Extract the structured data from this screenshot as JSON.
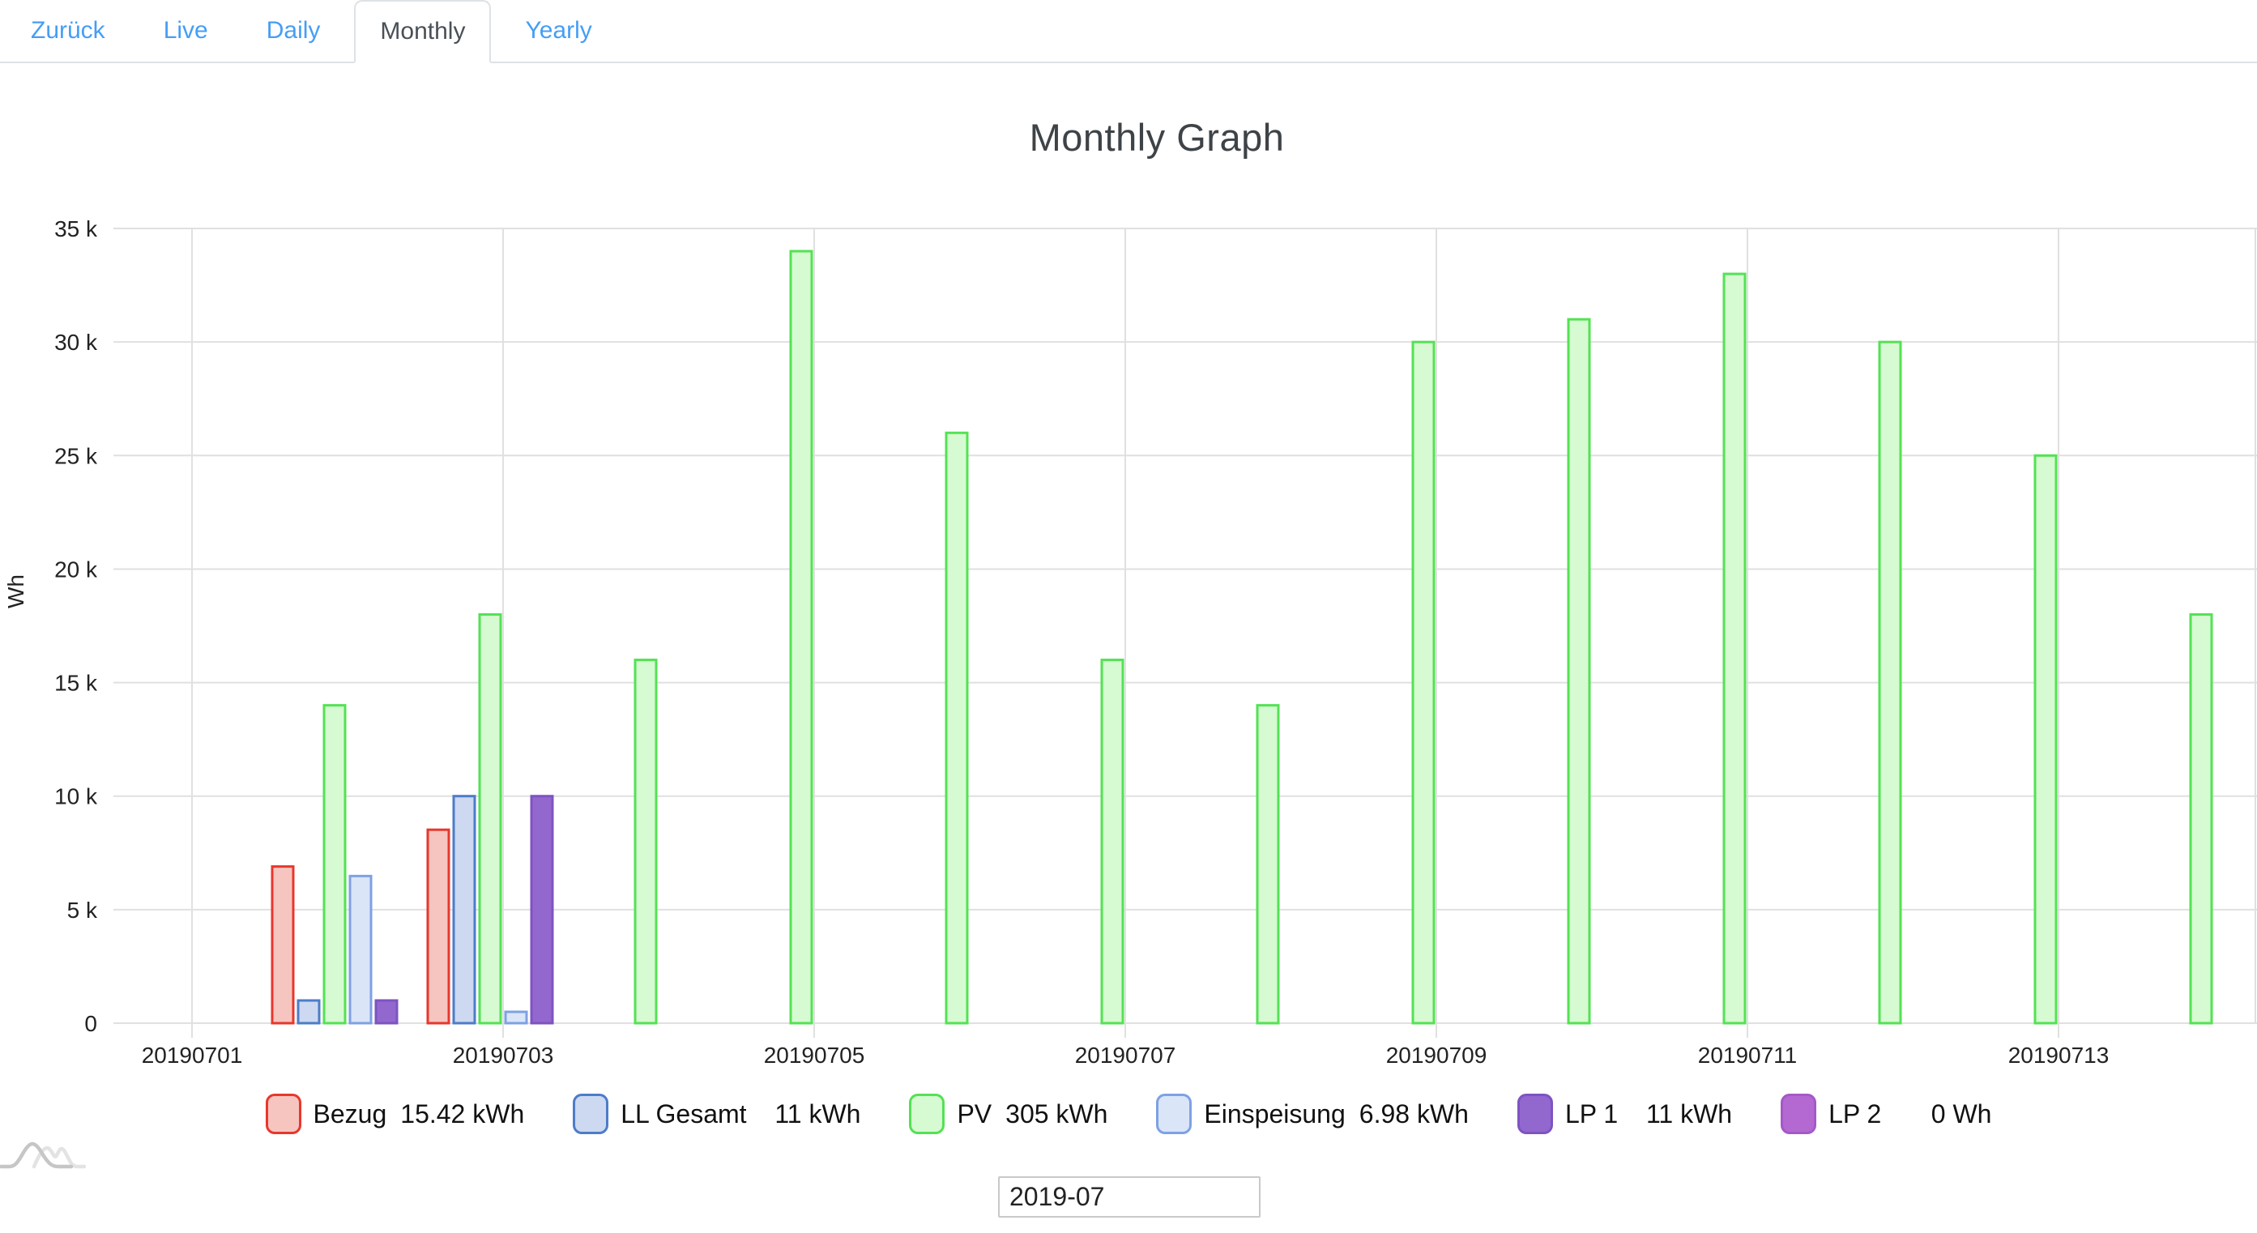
{
  "tabs": {
    "items": [
      {
        "key": "zurueck",
        "label": "Zurück",
        "active": false
      },
      {
        "key": "live",
        "label": "Live",
        "active": false
      },
      {
        "key": "daily",
        "label": "Daily",
        "active": false
      },
      {
        "key": "monthly",
        "label": "Monthly",
        "active": true
      },
      {
        "key": "yearly",
        "label": "Yearly",
        "active": false
      }
    ]
  },
  "title": "Monthly Graph",
  "chart_data": {
    "type": "bar",
    "title": "Monthly Graph",
    "xlabel": "",
    "ylabel": "Wh",
    "ylim": [
      0,
      35000
    ],
    "ytick_step": 5000,
    "ytick_labels": [
      "0",
      "5 k",
      "10 k",
      "15 k",
      "20 k",
      "25 k",
      "30 k",
      "35 k"
    ],
    "categories": [
      "20190701",
      "20190702",
      "20190703",
      "20190704",
      "20190705",
      "20190706",
      "20190707",
      "20190708",
      "20190709",
      "20190710",
      "20190711",
      "20190712",
      "20190713",
      "20190714"
    ],
    "xtick_days": [
      1,
      3,
      5,
      7,
      9,
      11,
      13
    ],
    "xtick_labels": [
      "20190701",
      "20190703",
      "20190705",
      "20190707",
      "20190709",
      "20190711",
      "20190713"
    ],
    "grid_on": true,
    "grid_color": "#e0e0e0",
    "legend_position": "bottom",
    "series": [
      {
        "key": "bezug",
        "name": "Bezug",
        "total_label": "15.42 kWh",
        "stroke": "#e8372c",
        "fill": "#f7c5c0",
        "solid": false,
        "values": [
          0,
          6900,
          8520,
          0,
          0,
          0,
          0,
          0,
          0,
          0,
          0,
          0,
          0,
          0
        ]
      },
      {
        "key": "ll-gesamt",
        "name": "LL Gesamt",
        "total_label": "  11 kWh",
        "stroke": "#4d7cc9",
        "fill": "#cdd9f1",
        "solid": false,
        "values": [
          0,
          1000,
          10000,
          0,
          0,
          0,
          0,
          0,
          0,
          0,
          0,
          0,
          0,
          0
        ]
      },
      {
        "key": "pv",
        "name": "PV",
        "total_label": "305 kWh",
        "stroke": "#53e253",
        "fill": "#d6fad1",
        "solid": false,
        "values": [
          0,
          14000,
          18000,
          16000,
          34000,
          26000,
          16000,
          14000,
          30000,
          31000,
          33000,
          30000,
          25000,
          18000
        ]
      },
      {
        "key": "einspeisung",
        "name": "Einspeisung",
        "total_label": "6.98 kWh",
        "stroke": "#7ea1e4",
        "fill": "#dae5f8",
        "solid": false,
        "values": [
          0,
          6480,
          500,
          0,
          0,
          0,
          0,
          0,
          0,
          0,
          0,
          0,
          0,
          0
        ]
      },
      {
        "key": "lp1",
        "name": "LP 1",
        "total_label": "  11 kWh",
        "stroke": "#7e53c1",
        "fill": "#9268cf",
        "solid": true,
        "values": [
          0,
          1000,
          10000,
          0,
          0,
          0,
          0,
          0,
          0,
          0,
          0,
          0,
          0,
          0
        ]
      },
      {
        "key": "lp2",
        "name": "LP 2",
        "total_label": "     0 Wh",
        "stroke": "#a558c7",
        "fill": "#b369d1",
        "solid": true,
        "values": [
          0,
          0,
          0,
          0,
          0,
          0,
          0,
          0,
          0,
          0,
          0,
          0,
          0,
          0
        ]
      }
    ]
  },
  "legend": {
    "entries": [
      {
        "label": "Bezug",
        "value": "15.42 kWh"
      },
      {
        "label": "LL Gesamt",
        "value": "  11 kWh"
      },
      {
        "label": "PV",
        "value": "305 kWh"
      },
      {
        "label": "Einspeisung",
        "value": "6.98 kWh"
      },
      {
        "label": "LP 1",
        "value": "  11 kWh"
      },
      {
        "label": "LP 2",
        "value": "     0 Wh"
      }
    ]
  },
  "controls": {
    "month_input": {
      "value": "2019-07"
    }
  },
  "logo": {
    "icon": "wave-logo"
  }
}
